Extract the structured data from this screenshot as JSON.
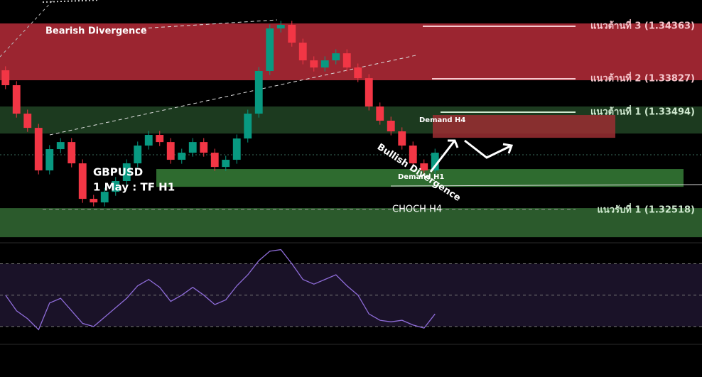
{
  "chart_data": {
    "type": "candlestick",
    "symbol": "GBPUSD",
    "subtitle": "1 May : TF H1",
    "ylim": [
      1.32199,
      1.34627
    ],
    "up_color": "#089981",
    "down_color": "#f23645",
    "open": [
      1.3392,
      1.3377,
      1.33484,
      1.33341,
      1.32913,
      1.33127,
      1.33198,
      1.32984,
      1.32627,
      1.32591,
      1.32698,
      1.32806,
      1.32984,
      1.33163,
      1.3327,
      1.33198,
      1.3302,
      1.33091,
      1.33198,
      1.33091,
      1.32948,
      1.3302,
      1.33234,
      1.33484,
      1.33913,
      1.34341,
      1.34377,
      1.34198,
      1.3402,
      1.33948,
      1.3402,
      1.34091,
      1.33948,
      1.33841,
      1.33556,
      1.33413,
      1.33306,
      1.33163,
      1.32984,
      1.32913
    ],
    "high": [
      1.3396,
      1.3381,
      1.33524,
      1.33381,
      1.33167,
      1.33238,
      1.33238,
      1.33024,
      1.32667,
      1.32738,
      1.32846,
      1.33024,
      1.33203,
      1.3331,
      1.3331,
      1.33238,
      1.33131,
      1.33238,
      1.33238,
      1.33131,
      1.3306,
      1.33274,
      1.33524,
      1.33953,
      1.34381,
      1.34417,
      1.34417,
      1.34238,
      1.3406,
      1.3406,
      1.34131,
      1.34131,
      1.33988,
      1.33881,
      1.33596,
      1.33453,
      1.33346,
      1.33203,
      1.33024,
      1.33131
    ],
    "low": [
      1.3373,
      1.33444,
      1.33301,
      1.32873,
      1.32873,
      1.33087,
      1.32944,
      1.32587,
      1.32551,
      1.32551,
      1.32658,
      1.32766,
      1.32944,
      1.33123,
      1.33158,
      1.3298,
      1.3298,
      1.33051,
      1.33051,
      1.32908,
      1.32908,
      1.3298,
      1.33194,
      1.33444,
      1.33873,
      1.34301,
      1.34158,
      1.3398,
      1.33908,
      1.33908,
      1.3398,
      1.33908,
      1.33801,
      1.33516,
      1.33373,
      1.33266,
      1.33123,
      1.32944,
      1.32873,
      1.32873
    ],
    "close": [
      1.3377,
      1.33484,
      1.33341,
      1.32913,
      1.33127,
      1.33198,
      1.32984,
      1.32627,
      1.32591,
      1.32698,
      1.32806,
      1.32984,
      1.33163,
      1.3327,
      1.33198,
      1.3302,
      1.33091,
      1.33198,
      1.33091,
      1.32948,
      1.3302,
      1.33234,
      1.33484,
      1.33913,
      1.34341,
      1.34377,
      1.34198,
      1.3402,
      1.33948,
      1.3402,
      1.34091,
      1.33948,
      1.33841,
      1.33556,
      1.33413,
      1.33306,
      1.33163,
      1.32984,
      1.32913,
      1.33091
    ],
    "zones": [
      {
        "from": 1.3382,
        "to": 1.34391,
        "color": "#9b2530"
      },
      {
        "from": 1.33284,
        "to": 1.33556,
        "color": "#1c3a1f"
      },
      {
        "from": 1.32748,
        "to": 1.32927,
        "color": "#2e6b2f"
      },
      {
        "from": 1.32241,
        "to": 1.32534,
        "color": "#2b5a2c"
      },
      {
        "from": 1.33241,
        "to": 1.3347,
        "color": "#9b2e33"
      }
    ],
    "levels": [
      "แนวต้านที่ 3 (1.34363)",
      "แนวต้านที่ 2 (1.33827)",
      "แนวต้านที่ 1 (1.33494)",
      "แนวรับที่ 1 (1.32518)"
    ],
    "annotations": [
      "Bearish Divergence",
      "Demand H4",
      "Demand H1",
      "Bullish Divergence",
      "CHOCH H4"
    ],
    "rsi": {
      "color": "#8e6cd8",
      "ylim": [
        20,
        82
      ],
      "levels": [
        70,
        50,
        30
      ],
      "values": [
        50,
        40,
        35,
        28,
        45,
        48,
        40,
        32,
        30,
        36,
        42,
        48,
        56,
        60,
        55,
        46,
        50,
        55,
        50,
        44,
        47,
        56,
        63,
        72,
        78,
        79,
        70,
        60,
        57,
        60,
        63,
        56,
        50,
        38,
        34,
        33,
        34,
        31,
        29,
        38
      ]
    }
  }
}
